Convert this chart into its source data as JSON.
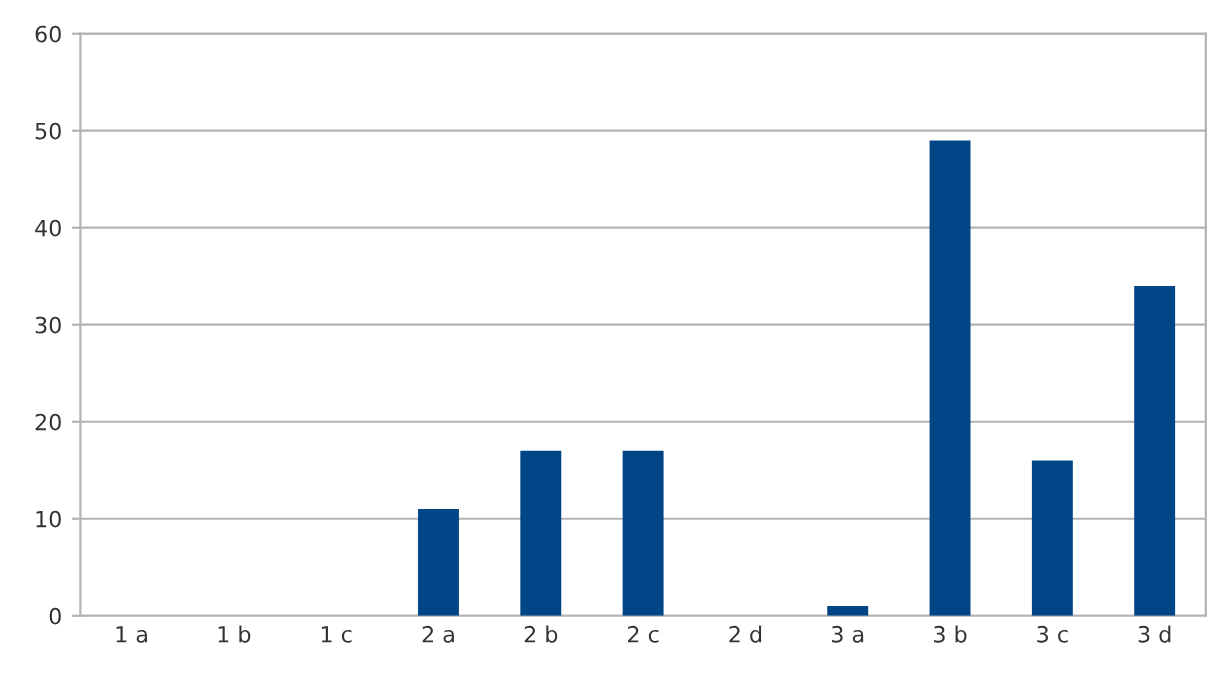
{
  "chart_data": {
    "type": "bar",
    "categories": [
      "1 a",
      "1 b",
      "1 c",
      "2 a",
      "2 b",
      "2 c",
      "2 d",
      "3 a",
      "3 b",
      "3 c",
      "3 d"
    ],
    "values": [
      0,
      0,
      0,
      11,
      17,
      17,
      0,
      1,
      49,
      16,
      34
    ],
    "color": "#004586",
    "ylim": [
      0,
      60
    ],
    "yticks": [
      0,
      10,
      20,
      30,
      40,
      50,
      60
    ],
    "grid": "y",
    "legend": false
  }
}
